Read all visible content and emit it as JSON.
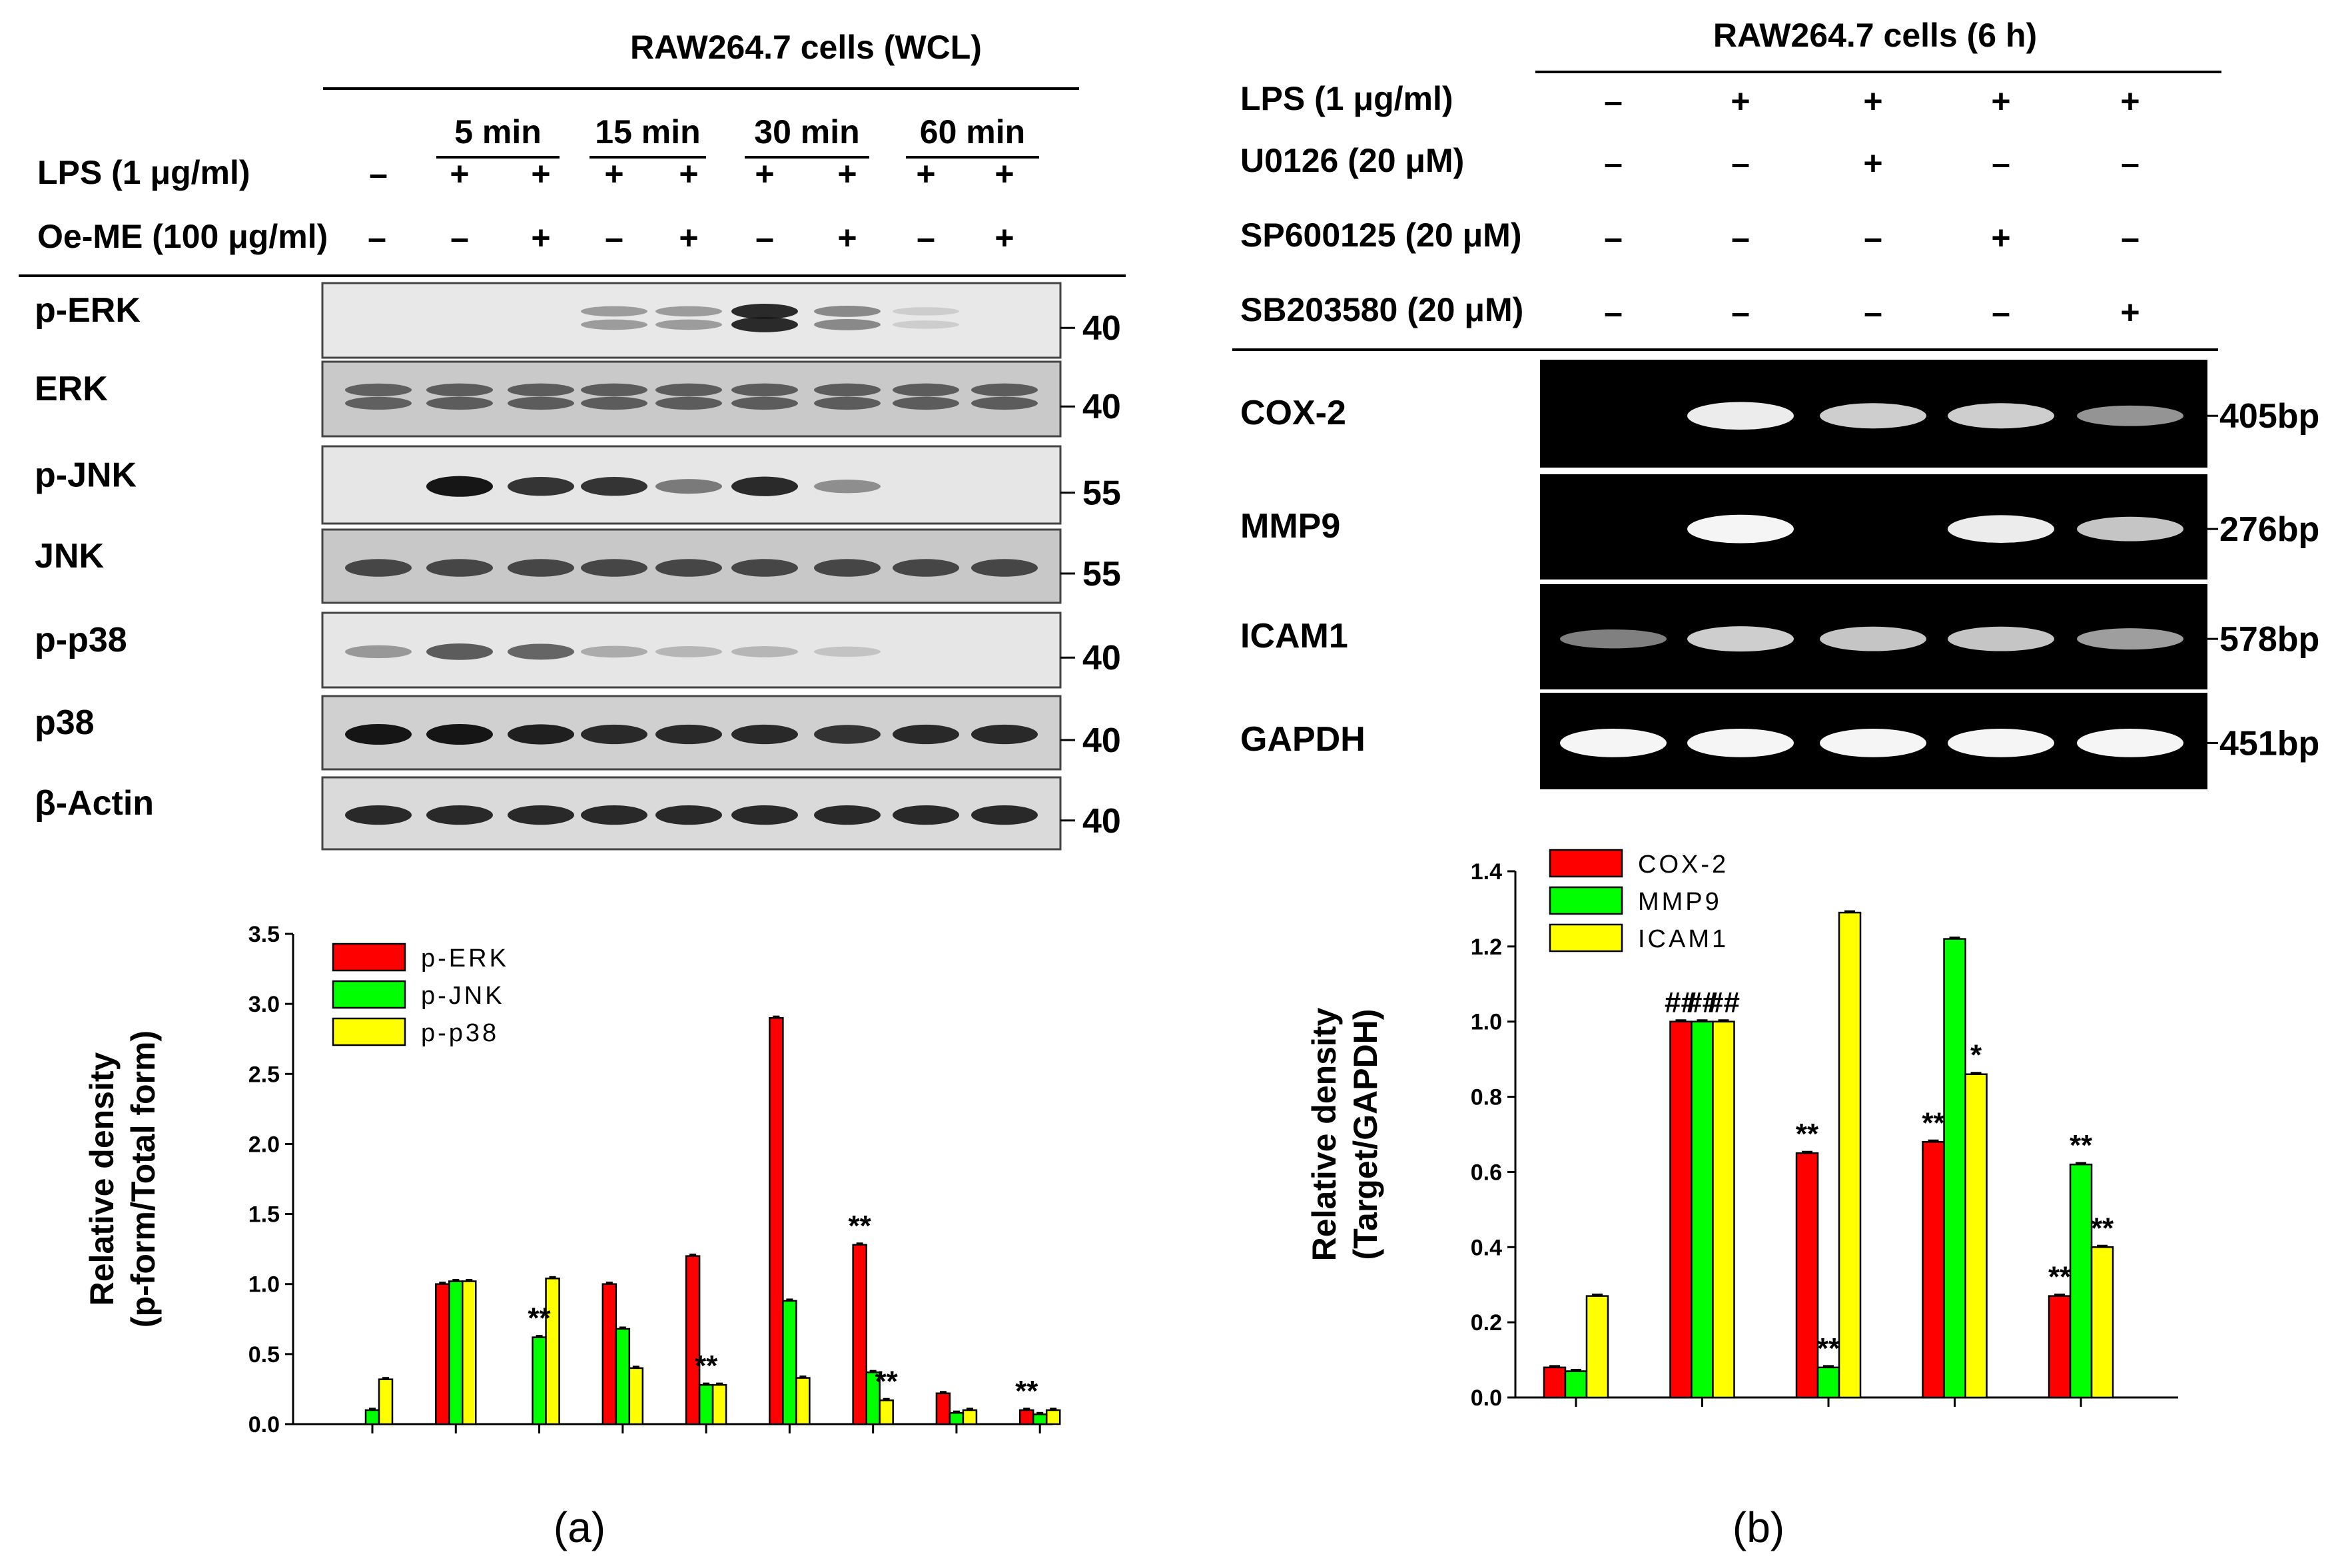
{
  "panel_a": {
    "title": "RAW264.7 cells (WCL)",
    "time_labels": [
      "5 min",
      "15 min",
      "30 min",
      "60 min"
    ],
    "treatments": [
      {
        "label": "LPS (1 μg/ml)",
        "signs": [
          "–",
          "+",
          "+",
          "+",
          "+",
          "+",
          "+",
          "+",
          "+"
        ]
      },
      {
        "label": "Oe-ME (100 μg/ml)",
        "signs": [
          "–",
          "–",
          "+",
          "–",
          "+",
          "–",
          "+",
          "–",
          "+"
        ]
      }
    ],
    "blots": [
      {
        "name": "p-ERK",
        "mw": "40",
        "bg": "#e8e8e8",
        "intensity": [
          0,
          0,
          0,
          0.3,
          0.3,
          0.9,
          0.4,
          0.04,
          0
        ],
        "double": true
      },
      {
        "name": "ERK",
        "mw": "40",
        "bg": "#c9c9c9",
        "intensity": [
          0.6,
          0.62,
          0.62,
          0.62,
          0.62,
          0.62,
          0.62,
          0.62,
          0.62
        ],
        "double": true
      },
      {
        "name": "p-JNK",
        "mw": "55",
        "bg": "#e6e6e6",
        "intensity": [
          0,
          0.95,
          0.8,
          0.8,
          0.45,
          0.85,
          0.35,
          0,
          0
        ],
        "double": false
      },
      {
        "name": "JNK",
        "mw": "55",
        "bg": "#c8c8c8",
        "intensity": [
          0.7,
          0.7,
          0.7,
          0.7,
          0.7,
          0.7,
          0.7,
          0.7,
          0.7
        ],
        "double": false
      },
      {
        "name": "p-p38",
        "mw": "40",
        "bg": "#e6e6e6",
        "intensity": [
          0.3,
          0.6,
          0.55,
          0.2,
          0.15,
          0.15,
          0.08,
          0,
          0
        ],
        "double": false
      },
      {
        "name": "p38",
        "mw": "40",
        "bg": "#d0d0d0",
        "intensity": [
          0.95,
          0.95,
          0.9,
          0.85,
          0.85,
          0.85,
          0.8,
          0.85,
          0.85
        ],
        "double": false
      },
      {
        "name": "β-Actin",
        "mw": "40",
        "bg": "#dadada",
        "intensity": [
          0.85,
          0.85,
          0.85,
          0.85,
          0.85,
          0.85,
          0.85,
          0.85,
          0.85
        ],
        "double": false
      }
    ],
    "caption": "(a)"
  },
  "panel_b": {
    "title": "RAW264.7 cells (6 h)",
    "treatments": [
      {
        "label": "LPS (1 μg/ml)",
        "signs": [
          "–",
          "+",
          "+",
          "+",
          "+"
        ]
      },
      {
        "label": "U0126 (20 μM)",
        "signs": [
          "–",
          "–",
          "+",
          "–",
          "–"
        ]
      },
      {
        "label": "SP600125 (20 μM)",
        "signs": [
          "–",
          "–",
          "–",
          "+",
          "–"
        ]
      },
      {
        "label": "SB203580 (20 μM)",
        "signs": [
          "–",
          "–",
          "–",
          "–",
          "+"
        ]
      }
    ],
    "gels": [
      {
        "name": "COX-2",
        "size": "405bp",
        "intensity": [
          0,
          0.9,
          0.75,
          0.75,
          0.45
        ]
      },
      {
        "name": "MMP9",
        "size": "276bp",
        "intensity": [
          0,
          0.95,
          0,
          0.9,
          0.7
        ]
      },
      {
        "name": "ICAM1",
        "size": "578bp",
        "intensity": [
          0.35,
          0.75,
          0.7,
          0.7,
          0.5
        ]
      },
      {
        "name": "GAPDH",
        "size": "451bp",
        "intensity": [
          0.95,
          0.95,
          0.95,
          0.95,
          0.95
        ]
      }
    ],
    "caption": "(b)"
  },
  "chart_data": [
    {
      "type": "bar",
      "ylabel": "Relative density (p-form/Total form)",
      "ylabel_lines": [
        "Relative density",
        "(p-form/Total form)"
      ],
      "ylim": [
        0,
        3.5
      ],
      "yticks": [
        "0.0",
        "0.5",
        "1.0",
        "1.5",
        "2.0",
        "2.5",
        "3.0",
        "3.5"
      ],
      "legend_position": "top-left",
      "series": [
        {
          "name": "p-ERK",
          "color": "#ff0000",
          "values": [
            0,
            1.0,
            0,
            1.0,
            1.2,
            2.9,
            1.28,
            0.22,
            0.1
          ]
        },
        {
          "name": "p-JNK",
          "color": "#00ff00",
          "values": [
            0.1,
            1.02,
            0.62,
            0.68,
            0.28,
            0.88,
            0.37,
            0.08,
            0.07
          ]
        },
        {
          "name": "p-p38",
          "color": "#ffff00",
          "values": [
            0.32,
            1.02,
            1.04,
            0.4,
            0.28,
            0.33,
            0.17,
            0.1,
            0.1
          ]
        }
      ],
      "annotations": [
        {
          "group": 2,
          "series": 1,
          "text": "**"
        },
        {
          "group": 4,
          "series": 1,
          "text": "**"
        },
        {
          "group": 6,
          "series": 0,
          "text": "**"
        },
        {
          "group": 6,
          "series": 2,
          "text": "**"
        },
        {
          "group": 8,
          "series": 0,
          "text": "**"
        }
      ]
    },
    {
      "type": "bar",
      "ylabel": "Relative density (Target/GAPDH)",
      "ylabel_lines": [
        "Relative density",
        "(Target/GAPDH)"
      ],
      "ylim": [
        0,
        1.4
      ],
      "yticks": [
        "0.0",
        "0.2",
        "0.4",
        "0.6",
        "0.8",
        "1.0",
        "1.2",
        "1.4"
      ],
      "legend_position": "top-left",
      "series": [
        {
          "name": "COX-2",
          "color": "#ff0000",
          "values": [
            0.08,
            1.0,
            0.65,
            0.68,
            0.27
          ]
        },
        {
          "name": "MMP9",
          "color": "#00ff00",
          "values": [
            0.07,
            1.0,
            0.08,
            1.22,
            0.62
          ]
        },
        {
          "name": "ICAM1",
          "color": "#ffff00",
          "values": [
            0.27,
            1.0,
            1.29,
            0.86,
            0.4
          ]
        }
      ],
      "annotations": [
        {
          "group": 1,
          "series": 0,
          "text": "##"
        },
        {
          "group": 1,
          "series": 1,
          "text": "##"
        },
        {
          "group": 1,
          "series": 2,
          "text": "##"
        },
        {
          "group": 2,
          "series": 0,
          "text": "**"
        },
        {
          "group": 2,
          "series": 1,
          "text": "**"
        },
        {
          "group": 3,
          "series": 0,
          "text": "**"
        },
        {
          "group": 3,
          "series": 2,
          "text": "*"
        },
        {
          "group": 4,
          "series": 0,
          "text": "**"
        },
        {
          "group": 4,
          "series": 1,
          "text": "**"
        },
        {
          "group": 4,
          "series": 2,
          "text": "**"
        }
      ]
    }
  ]
}
